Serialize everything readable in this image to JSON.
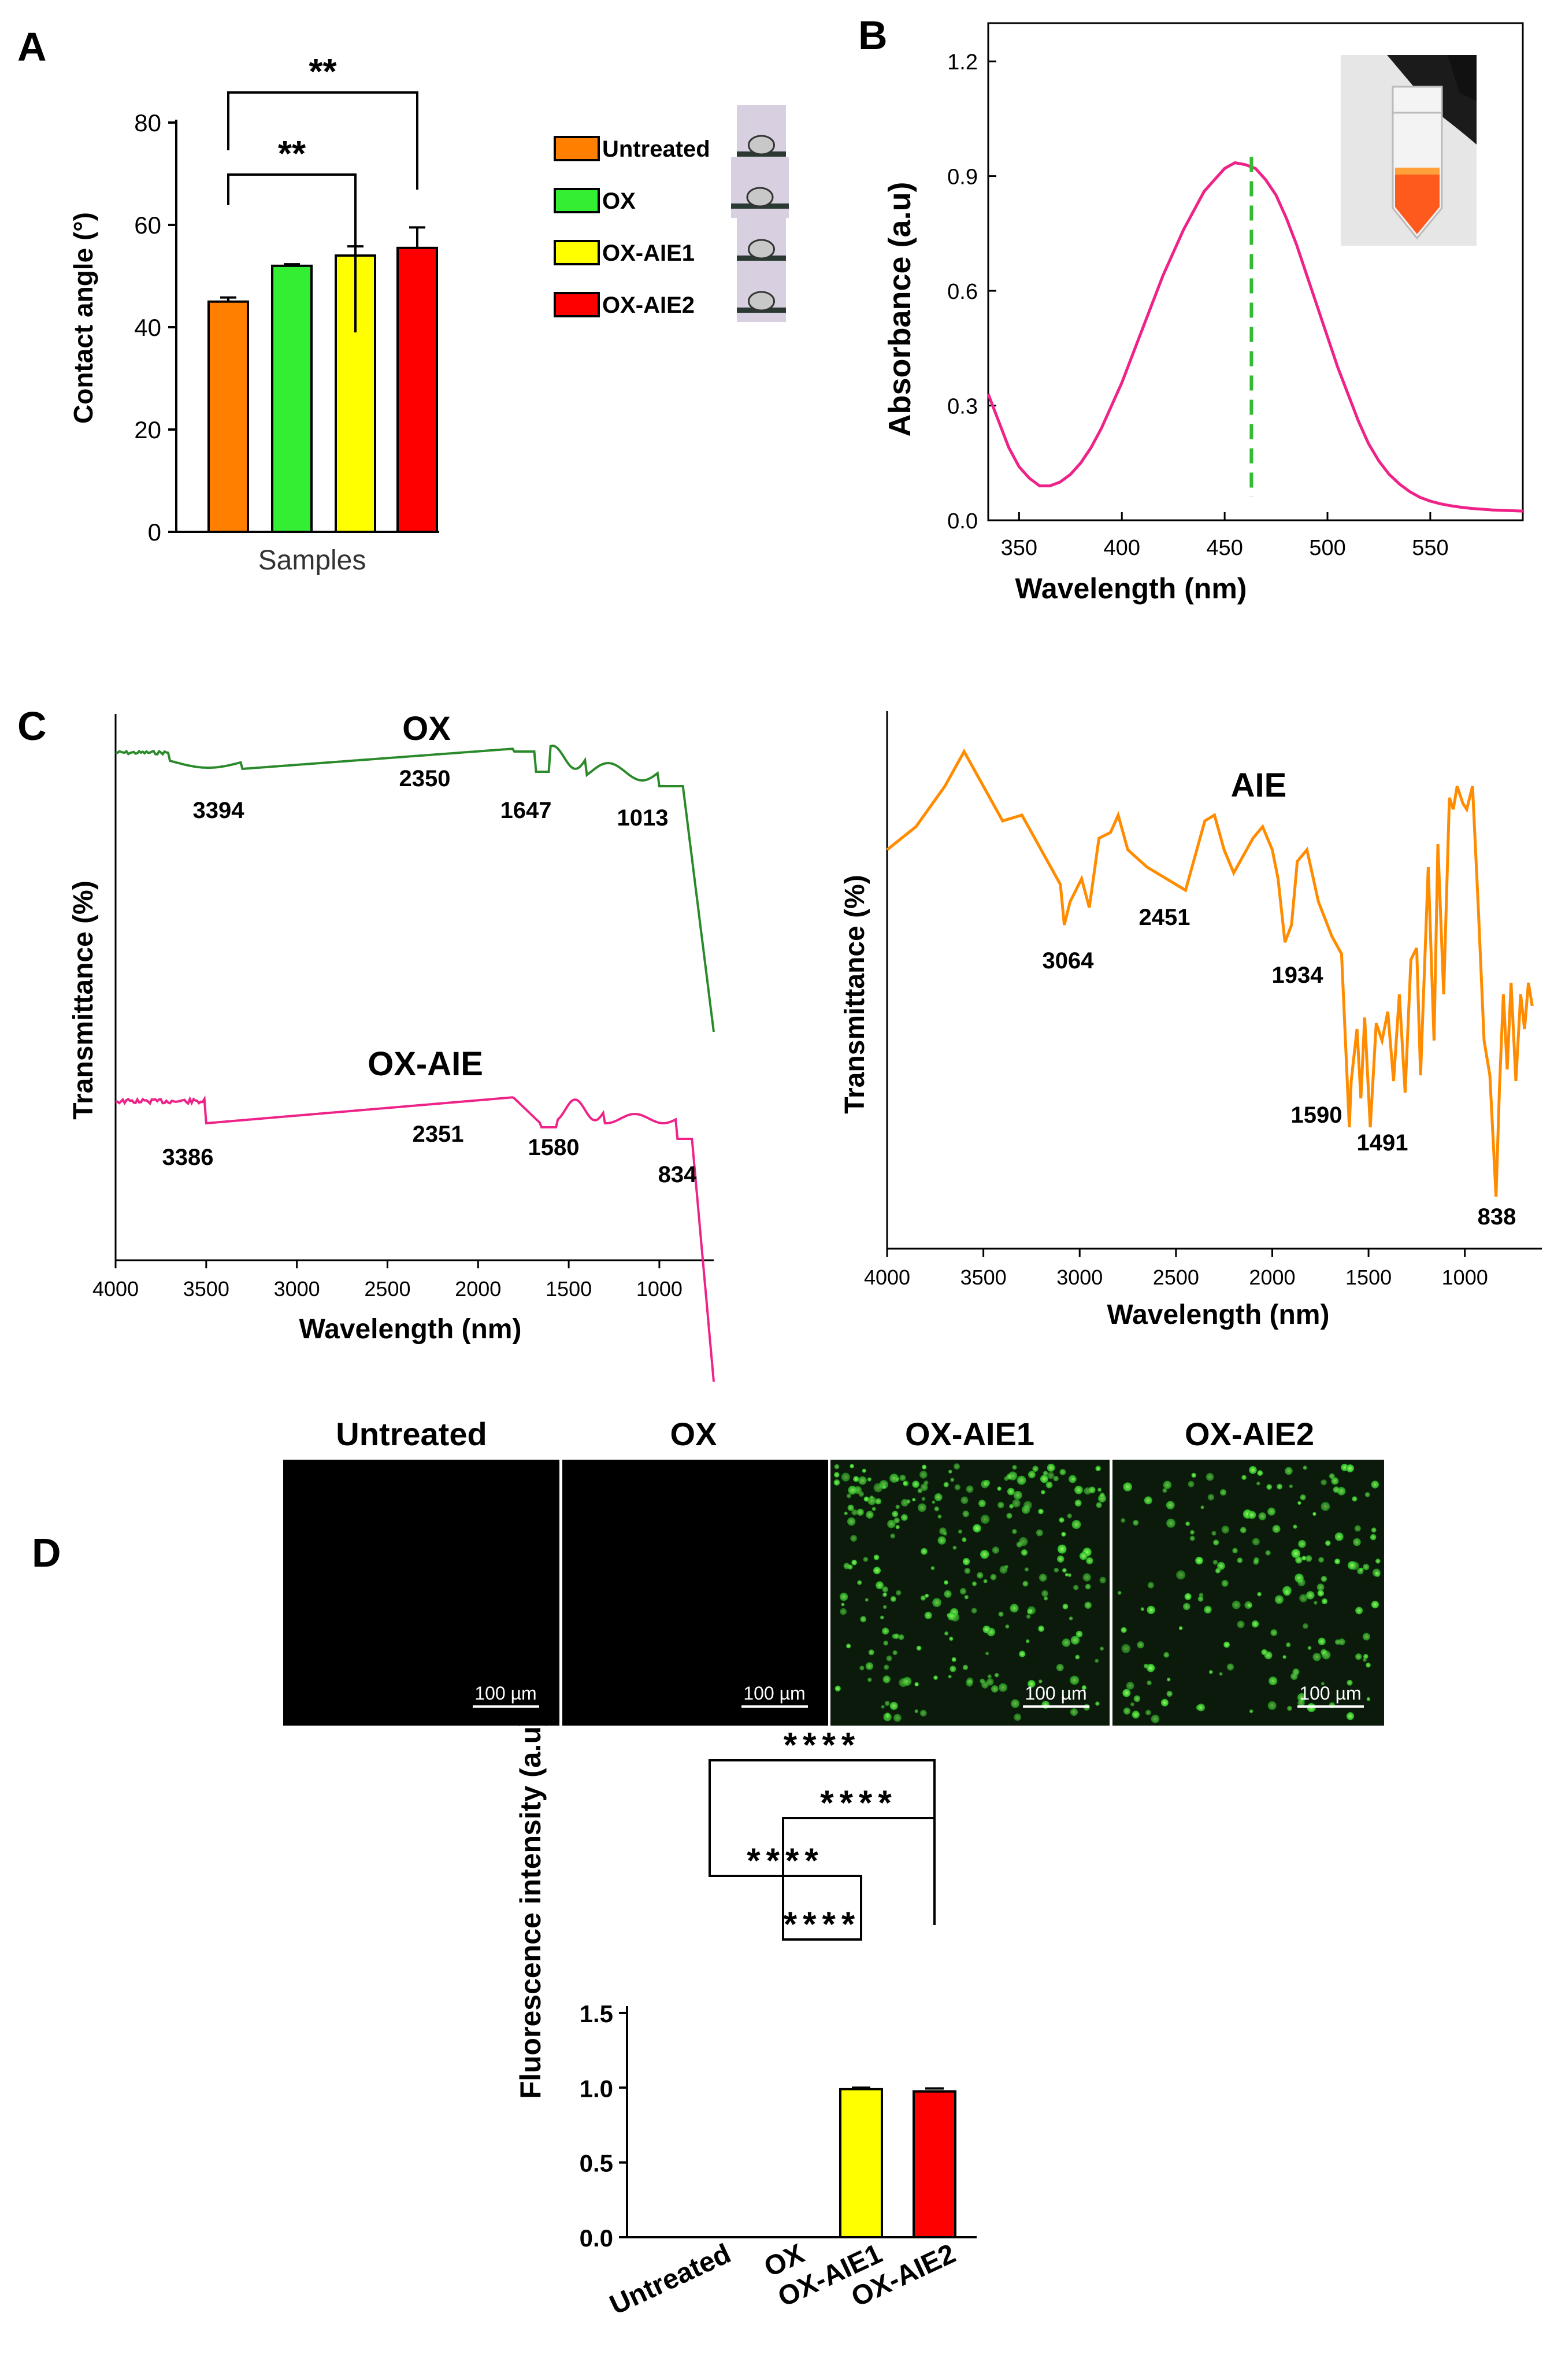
{
  "panels": {
    "A": "A",
    "B": "B",
    "C": "C",
    "D": "D"
  },
  "chart_data": [
    {
      "panel": "A",
      "type": "bar",
      "categories": [
        "Untreated",
        "OX",
        "OX-AIE1",
        "OX-AIE2"
      ],
      "values": [
        45,
        52,
        54,
        55.5
      ],
      "errors": [
        0.8,
        0.3,
        1.8,
        4
      ],
      "colors": [
        "#ff8000",
        "#33ee33",
        "#ffff00",
        "#ff0000"
      ],
      "ylabel": "Contact angle (°)",
      "xlabel": "Samples",
      "ylim": [
        0,
        80
      ],
      "yticks": [
        "0",
        "20",
        "40",
        "60",
        "80"
      ],
      "significance": [
        {
          "from": "Untreated",
          "to": "OX-AIE1",
          "label": "**"
        },
        {
          "from": "Untreated",
          "to": "OX-AIE2",
          "label": "**"
        }
      ],
      "legend": [
        "Untreated",
        "OX",
        "OX-AIE1",
        "OX-AIE2"
      ]
    },
    {
      "panel": "B",
      "type": "line",
      "series": [
        {
          "name": "Absorbance",
          "color": "#ee2288",
          "x": [
            335,
            340,
            345,
            350,
            355,
            360,
            365,
            370,
            375,
            380,
            385,
            390,
            395,
            400,
            405,
            410,
            415,
            420,
            425,
            430,
            435,
            440,
            445,
            450,
            455,
            460,
            465,
            470,
            475,
            480,
            485,
            490,
            495,
            500,
            505,
            510,
            515,
            520,
            525,
            530,
            535,
            540,
            545,
            550,
            555,
            560,
            565,
            570,
            575,
            580,
            585,
            590,
            595
          ],
          "y": [
            0.33,
            0.26,
            0.19,
            0.14,
            0.11,
            0.09,
            0.09,
            0.1,
            0.12,
            0.15,
            0.19,
            0.24,
            0.3,
            0.36,
            0.43,
            0.5,
            0.57,
            0.64,
            0.7,
            0.76,
            0.81,
            0.86,
            0.89,
            0.92,
            0.935,
            0.93,
            0.92,
            0.89,
            0.85,
            0.79,
            0.72,
            0.64,
            0.56,
            0.48,
            0.4,
            0.33,
            0.26,
            0.2,
            0.155,
            0.12,
            0.095,
            0.075,
            0.06,
            0.05,
            0.043,
            0.038,
            0.034,
            0.031,
            0.029,
            0.027,
            0.026,
            0.025,
            0.024
          ]
        }
      ],
      "peak_marker_x": 463,
      "xlabel": "Wavelength (nm)",
      "ylabel": "Absorbance (a.u)",
      "xlim": [
        335,
        595
      ],
      "ylim": [
        0,
        1.3
      ],
      "xticks": [
        "350",
        "400",
        "450",
        "500",
        "550"
      ],
      "yticks": [
        "0.0",
        "0.3",
        "0.6",
        "0.9",
        "1.2"
      ]
    },
    {
      "panel": "C-left",
      "type": "line",
      "series": [
        {
          "name": "OX",
          "color": "#2a8a2a"
        },
        {
          "name": "OX-AIE",
          "color": "#ee2288"
        }
      ],
      "peaks_OX": [
        "3394",
        "2350",
        "1647",
        "1013"
      ],
      "peaks_OXAIE": [
        "3386",
        "2351",
        "1580",
        "834"
      ],
      "xlabel": "Wavelength (nm)",
      "ylabel": "Transmittance (%)",
      "xlim": [
        4000,
        700
      ],
      "xticks": [
        "4000",
        "3500",
        "3000",
        "2500",
        "2000",
        "1500",
        "1000"
      ]
    },
    {
      "panel": "C-right",
      "type": "line",
      "series": [
        {
          "name": "AIE",
          "color": "#ff8c00"
        }
      ],
      "peaks": [
        "3064",
        "2451",
        "1934",
        "1590",
        "1491",
        "838"
      ],
      "xlabel": "Wavelength (nm)",
      "ylabel": "Transmittance (%)",
      "xlim": [
        4000,
        600
      ],
      "xticks": [
        "4000",
        "3500",
        "3000",
        "2500",
        "2000",
        "1500",
        "1000"
      ]
    },
    {
      "panel": "D",
      "type": "bar",
      "categories": [
        "Untreated",
        "OX",
        "OX-AIE1",
        "OX-AIE2"
      ],
      "values": [
        0,
        0,
        0.99,
        0.975
      ],
      "errors": [
        0,
        0,
        0.01,
        0.02
      ],
      "colors": [
        "#ffffff",
        "#ffffff",
        "#ffff00",
        "#ff0000"
      ],
      "ylabel": "Fluorescence intensity (a.u)",
      "ylim": [
        0,
        1.5
      ],
      "yticks": [
        "0.0",
        "0.5",
        "1.0",
        "1.5"
      ],
      "significance": [
        {
          "from": "Untreated",
          "to": "OX-AIE2",
          "label": "****"
        },
        {
          "from": "OX",
          "to": "OX-AIE2",
          "label": "****"
        },
        {
          "from": "Untreated",
          "to": "OX-AIE1",
          "label": "****"
        },
        {
          "from": "OX",
          "to": "OX-AIE1",
          "label": "****"
        }
      ]
    }
  ],
  "panelD_images": {
    "titles": [
      "Untreated",
      "OX",
      "OX-AIE1",
      "OX-AIE2"
    ],
    "scalebar": "100 µm"
  }
}
